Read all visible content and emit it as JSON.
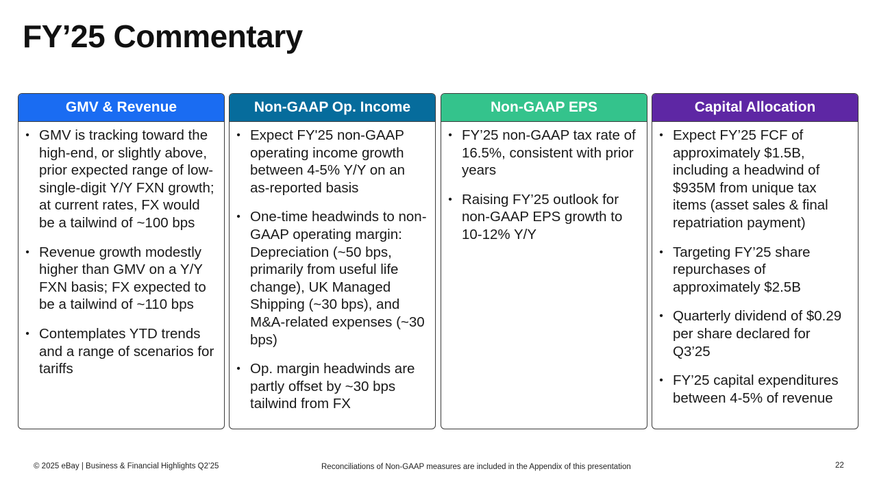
{
  "title": "FY’25 Commentary",
  "colors": {
    "gmv": "#1a6cf2",
    "opinc": "#066c9c",
    "eps": "#34c38c",
    "capital": "#5e27a4"
  },
  "columns": [
    {
      "header": "GMV & Revenue",
      "bullets": [
        "GMV is tracking toward the high-end, or slightly above, prior expected range of low-single-digit Y/Y FXN growth; at current rates, FX would be a tailwind of ~100 bps",
        "Revenue growth modestly higher than GMV on a Y/Y FXN basis; FX expected to be a tailwind of ~110 bps",
        "Contemplates YTD trends and a range of scenarios for tariffs"
      ]
    },
    {
      "header": "Non-GAAP Op. Income",
      "bullets": [
        "Expect FY'25 non-GAAP operating income growth between 4-5% Y/Y on an as-reported basis",
        "One-time headwinds to non-GAAP operating margin: Depreciation (~50 bps, primarily from useful life change), UK Managed Shipping (~30 bps), and M&A-related expenses (~30 bps)",
        "Op. margin headwinds are partly offset by ~30 bps tailwind from FX"
      ]
    },
    {
      "header": "Non-GAAP EPS",
      "bullets": [
        "FY’25 non-GAAP tax rate of 16.5%, consistent with prior years",
        "Raising FY’25 outlook for non-GAAP EPS growth to 10-12% Y/Y"
      ]
    },
    {
      "header": "Capital Allocation",
      "bullets": [
        "Expect FY’25 FCF of approximately $1.5B, including a headwind of $935M from unique tax items (asset sales & final repatriation payment)",
        "Targeting FY’25 share repurchases of approximately $2.5B",
        "Quarterly dividend of $0.29 per share declared for Q3’25",
        "FY’25 capital expenditures between 4-5% of revenue"
      ]
    }
  ],
  "footer": {
    "copyright": "© 2025 eBay | Business & Financial Highlights Q2’25",
    "note": "Reconciliations of Non-GAAP measures are included in the Appendix of this presentation",
    "page": "22"
  }
}
